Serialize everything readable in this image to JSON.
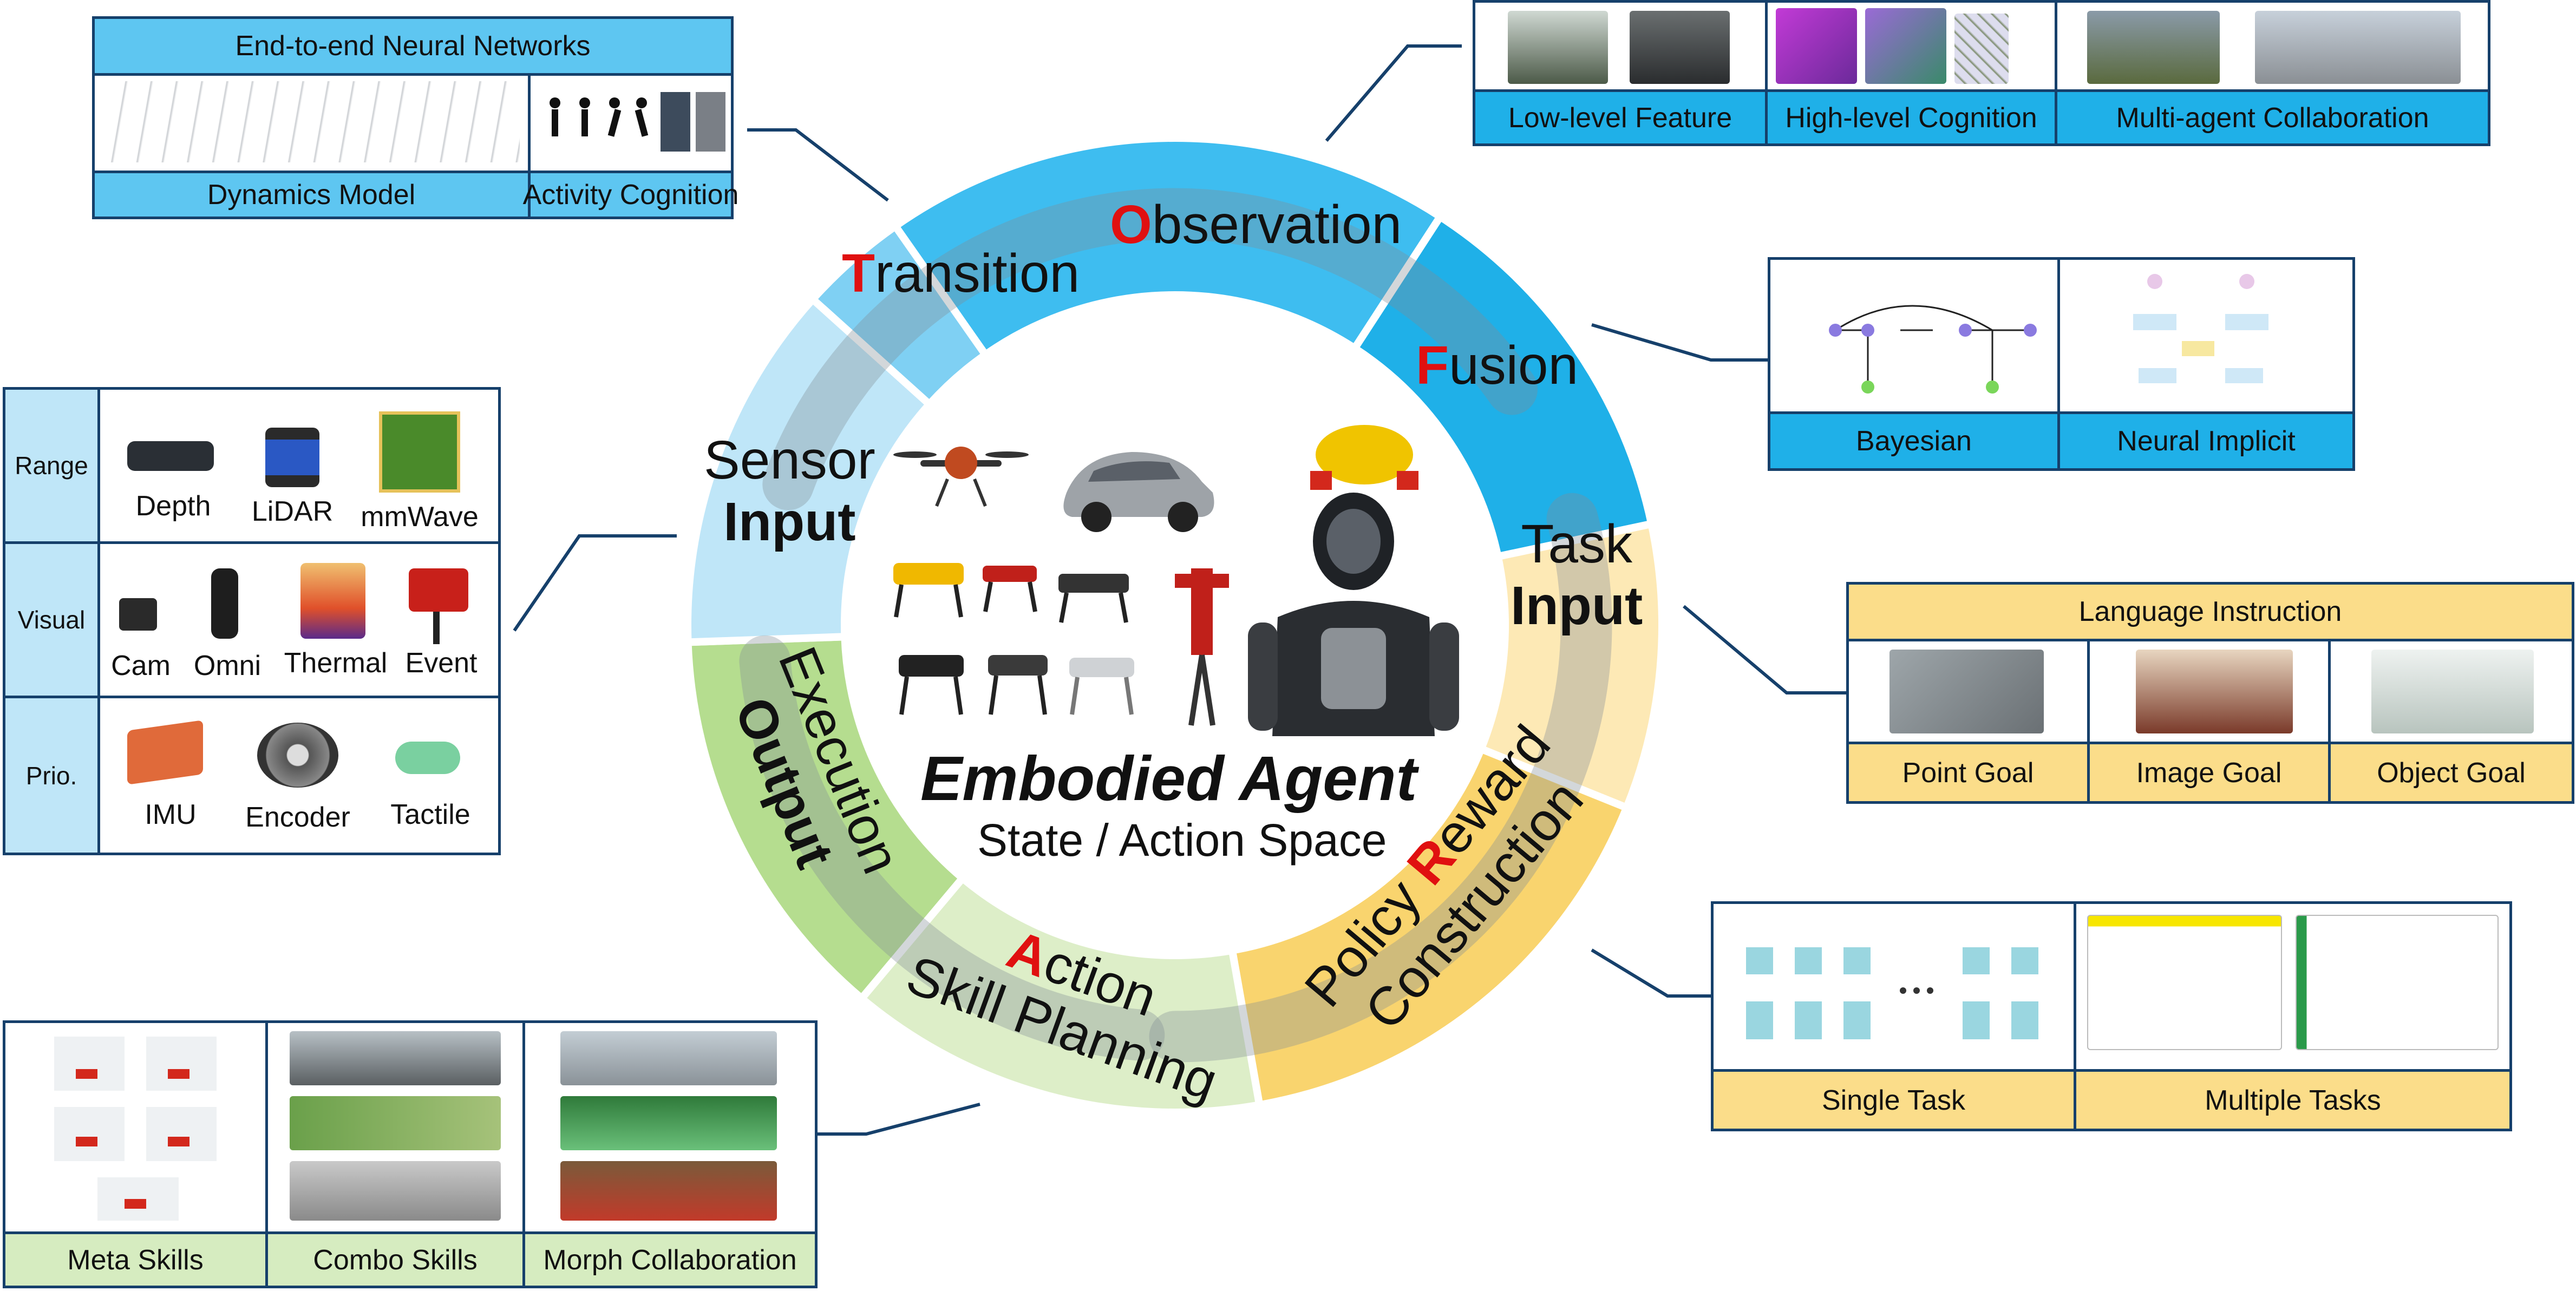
{
  "center": {
    "title": "Embodied Agent",
    "subtitle": "State / Action Space"
  },
  "ring": {
    "transition": {
      "initial": "T",
      "rest": "ransition"
    },
    "observation": {
      "initial": "O",
      "rest": "bservation"
    },
    "fusion": {
      "initial": "F",
      "rest": "usion"
    },
    "sensor_input": {
      "line1": "Sensor",
      "line2": "Input"
    },
    "task_input": {
      "line1": "Task",
      "line2": "Input"
    },
    "policy": {
      "line1_pre": "Policy ",
      "initial": "R",
      "line1_post": "eward",
      "line2": "Construction"
    },
    "action": {
      "initial": "A",
      "rest": "ction",
      "line2": "Skill Planning"
    },
    "execution": {
      "line1": "Execution",
      "line2": "Output"
    }
  },
  "transition_panel": {
    "header": "End-to-end Neural Networks",
    "labels": [
      "Dynamics Model",
      "Activity Cognition"
    ]
  },
  "observation_panel": {
    "labels": [
      "Low-level Feature",
      "High-level Cognition",
      "Multi-agent Collaboration"
    ]
  },
  "fusion_panel": {
    "labels": [
      "Bayesian",
      "Neural Implicit"
    ]
  },
  "sensor_panel": {
    "rows": [
      {
        "category": "Range",
        "items": [
          "Depth",
          "LiDAR",
          "mmWave"
        ]
      },
      {
        "category": "Visual",
        "items": [
          "Cam",
          "Omni",
          "Thermal",
          "Event"
        ]
      },
      {
        "category": "Prio.",
        "items": [
          "IMU",
          "Encoder",
          "Tactile"
        ]
      }
    ]
  },
  "task_panel": {
    "header": "Language Instruction",
    "labels": [
      "Point Goal",
      "Image Goal",
      "Object Goal"
    ]
  },
  "policy_panel": {
    "labels": [
      "Single Task",
      "Multiple Tasks"
    ]
  },
  "action_panel": {
    "labels": [
      "Meta Skills",
      "Combo Skills",
      "Morph Collaboration"
    ]
  },
  "colors": {
    "border": "#16406b",
    "blue": "#5ec6f1",
    "deep_blue": "#1fb0e8",
    "light_blue": "#bfe6f8",
    "gold": "#fbdd8a",
    "green": "#d6ecc0",
    "accent_red": "#e01010"
  }
}
